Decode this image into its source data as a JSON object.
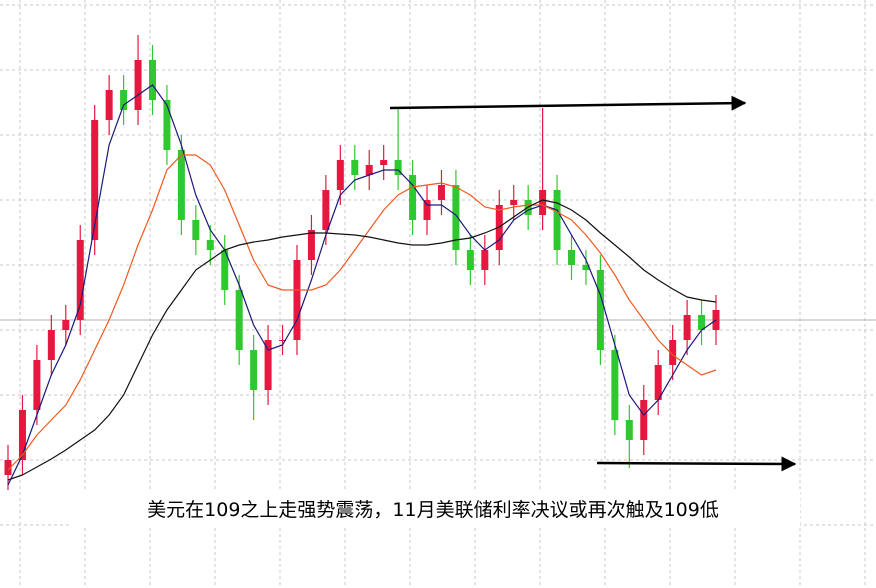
{
  "chart_data": {
    "type": "candlestick",
    "title": "美元在109之上走强势震荡，11月美联储利率决议或再次触及109低",
    "ylim": [
      -63,
      525
    ],
    "yticks": [
      0,
      65,
      130,
      195,
      260,
      325,
      390,
      455,
      520
    ],
    "grid": true,
    "price_line": 205,
    "up_color": "#e8173f",
    "down_color": "#2fc92f",
    "open": [
      50,
      65,
      115,
      165,
      195,
      205,
      285,
      405,
      435,
      415,
      465,
      425,
      375,
      305,
      285,
      275,
      235,
      175,
      135,
      185,
      185,
      265,
      295,
      335,
      365,
      350,
      360,
      365,
      350,
      305,
      325,
      340,
      275,
      255,
      275,
      320,
      325,
      310,
      335,
      275,
      260,
      255,
      175,
      105,
      85,
      125,
      160,
      185,
      210,
      195
    ],
    "high": [
      80,
      130,
      180,
      210,
      220,
      300,
      420,
      450,
      450,
      490,
      480,
      440,
      390,
      320,
      300,
      290,
      250,
      190,
      200,
      200,
      280,
      310,
      350,
      380,
      380,
      375,
      380,
      417,
      365,
      340,
      355,
      355,
      290,
      290,
      335,
      340,
      340,
      417,
      350,
      290,
      275,
      270,
      190,
      120,
      140,
      175,
      200,
      225,
      225,
      230
    ],
    "low": [
      35,
      50,
      100,
      150,
      180,
      190,
      270,
      390,
      400,
      400,
      410,
      360,
      290,
      270,
      260,
      220,
      160,
      105,
      120,
      170,
      170,
      250,
      280,
      320,
      335,
      335,
      345,
      335,
      290,
      290,
      310,
      260,
      240,
      240,
      260,
      305,
      295,
      295,
      260,
      245,
      240,
      160,
      90,
      57,
      70,
      110,
      145,
      170,
      180,
      180
    ],
    "close": [
      65,
      115,
      165,
      195,
      205,
      285,
      405,
      435,
      415,
      465,
      425,
      375,
      305,
      285,
      275,
      235,
      175,
      135,
      185,
      185,
      265,
      295,
      335,
      365,
      350,
      360,
      365,
      350,
      305,
      325,
      340,
      275,
      255,
      275,
      320,
      325,
      310,
      335,
      275,
      260,
      255,
      175,
      105,
      85,
      125,
      160,
      185,
      210,
      195,
      215
    ],
    "series": [
      {
        "color": "#1a1a7a",
        "values": [
          40,
          70,
          110,
          150,
          180,
          220,
          300,
          380,
          420,
          430,
          440,
          420,
          380,
          330,
          295,
          275,
          240,
          200,
          175,
          180,
          205,
          245,
          290,
          330,
          345,
          350,
          355,
          355,
          340,
          320,
          320,
          310,
          290,
          275,
          285,
          305,
          315,
          320,
          315,
          290,
          265,
          230,
          180,
          130,
          110,
          125,
          150,
          175,
          195,
          205
        ]
      },
      {
        "color": "#f05a1e",
        "values": [
          55,
          70,
          90,
          105,
          120,
          145,
          175,
          205,
          240,
          280,
          315,
          355,
          370,
          370,
          360,
          335,
          300,
          265,
          240,
          235,
          235,
          235,
          240,
          255,
          275,
          295,
          315,
          330,
          338,
          340,
          342,
          338,
          330,
          318,
          315,
          318,
          320,
          320,
          313,
          305,
          290,
          272,
          250,
          225,
          205,
          185,
          170,
          160,
          150,
          155
        ]
      },
      {
        "color": "#111111",
        "values": [
          45,
          50,
          58,
          66,
          75,
          85,
          95,
          110,
          130,
          160,
          190,
          215,
          235,
          255,
          265,
          275,
          280,
          283,
          285,
          288,
          290,
          292,
          292,
          291,
          290,
          288,
          285,
          282,
          280,
          280,
          282,
          285,
          287,
          292,
          298,
          308,
          318,
          325,
          322,
          315,
          305,
          292,
          280,
          268,
          255,
          245,
          236,
          228,
          225,
          223
        ]
      }
    ]
  }
}
